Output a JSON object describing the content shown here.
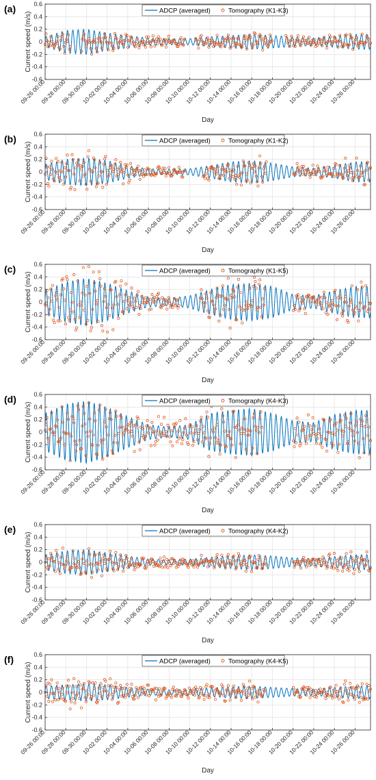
{
  "figure": {
    "panels": [
      {
        "letter": "(a)",
        "tomo_label": "Tomography (K1-K3)"
      },
      {
        "letter": "(b)",
        "tomo_label": "Tomography (K1-K2)"
      },
      {
        "letter": "(c)",
        "tomo_label": "Tomography (K1-K5)"
      },
      {
        "letter": "(d)",
        "tomo_label": "Tomography (K4-K3)"
      },
      {
        "letter": "(e)",
        "tomo_label": "Tomography (K4-K2)"
      },
      {
        "letter": "(f)",
        "tomo_label": "Tomography (K4-K5)"
      }
    ],
    "colors": {
      "adcp": "#0072BD",
      "tomography": "#D95319",
      "grid": "#dcdcdc",
      "axis": "#262626"
    }
  },
  "chart_data": [
    {
      "type": "line",
      "panel_label": "(a)",
      "xlabel": "Day",
      "ylabel": "Current speed (m/s)",
      "ylim": [
        -0.6,
        0.6
      ],
      "yticks": [
        -0.6,
        -0.4,
        -0.2,
        0,
        0.2,
        0.4,
        0.6
      ],
      "xlim": [
        "09-26 00:00",
        "10-27 12:00"
      ],
      "xticks": [
        "09-26 00:00",
        "09-28 00:00",
        "09-30 00:00",
        "10-02 00:00",
        "10-04 00:00",
        "10-06 00:00",
        "10-08 00:00",
        "10-10 00:00",
        "10-12 00:00",
        "10-14 00:00",
        "10-16 00:00",
        "10-18 00:00",
        "10-20 00:00",
        "10-22 00:00",
        "10-24 00:00",
        "10-26 00:00"
      ],
      "grid": true,
      "legend_position": "top",
      "series": [
        {
          "name": "ADCP (averaged)",
          "style": "line",
          "x": [
            "09-26",
            "09-28",
            "09-30",
            "10-02",
            "10-04",
            "10-06",
            "10-08",
            "10-10",
            "10-12",
            "10-14",
            "10-16",
            "10-18",
            "10-20",
            "10-22",
            "10-24",
            "10-26"
          ],
          "amplitude": [
            0.08,
            0.18,
            0.2,
            0.14,
            0.1,
            0.06,
            0.05,
            0.05,
            0.08,
            0.1,
            0.12,
            0.1,
            0.08,
            0.06,
            0.09,
            0.12
          ]
        },
        {
          "name": "Tomography (K1-K3)",
          "style": "markers",
          "x": [
            "09-26",
            "09-28",
            "09-30",
            "10-02",
            "10-04",
            "10-06",
            "10-08",
            "10-10",
            "10-12",
            "10-14",
            "10-16",
            "10-18",
            "10-20",
            "10-22",
            "10-24",
            "10-26"
          ],
          "amplitude": [
            0.12,
            0.1,
            0.1,
            0.09,
            0.08,
            0.07,
            0.07,
            0.06,
            0.07,
            0.08,
            0.08,
            0.07,
            0.07,
            0.06,
            0.07,
            0.08
          ],
          "gaps": [
            [
              "09-28 12:00",
              "09-29 12:00"
            ],
            [
              "10-09 12:00",
              "10-10 12:00"
            ],
            [
              "10-18 00:00",
              "10-19 06:00"
            ]
          ]
        }
      ]
    },
    {
      "type": "line",
      "panel_label": "(b)",
      "xlabel": "Day",
      "ylabel": "Current speed (m/s)",
      "ylim": [
        -0.6,
        0.6
      ],
      "yticks": [
        -0.6,
        -0.4,
        -0.2,
        0,
        0.2,
        0.4,
        0.6
      ],
      "xlim": [
        "09-26 00:00",
        "10-27 12:00"
      ],
      "xticks": [
        "09-26 00:00",
        "09-28 00:00",
        "09-30 00:00",
        "10-02 00:00",
        "10-04 00:00",
        "10-06 00:00",
        "10-08 00:00",
        "10-10 00:00",
        "10-12 00:00",
        "10-14 00:00",
        "10-16 00:00",
        "10-18 00:00",
        "10-20 00:00",
        "10-22 00:00",
        "10-24 00:00",
        "10-26 00:00"
      ],
      "grid": true,
      "legend_position": "top",
      "series": [
        {
          "name": "ADCP (averaged)",
          "style": "line",
          "x": [
            "09-26",
            "09-28",
            "09-30",
            "10-02",
            "10-04",
            "10-06",
            "10-08",
            "10-10",
            "10-12",
            "10-14",
            "10-16",
            "10-18",
            "10-20",
            "10-22",
            "10-24",
            "10-26"
          ],
          "amplitude": [
            0.12,
            0.2,
            0.22,
            0.18,
            0.1,
            0.05,
            0.04,
            0.05,
            0.1,
            0.16,
            0.18,
            0.14,
            0.08,
            0.06,
            0.1,
            0.16
          ]
        },
        {
          "name": "Tomography (K1-K2)",
          "style": "markers",
          "x": [
            "09-26",
            "09-28",
            "09-30",
            "10-02",
            "10-04",
            "10-06",
            "10-08",
            "10-10",
            "10-12",
            "10-14",
            "10-16",
            "10-18",
            "10-20",
            "10-22",
            "10-24",
            "10-26"
          ],
          "amplitude": [
            0.15,
            0.2,
            0.22,
            0.18,
            0.12,
            0.07,
            0.06,
            0.06,
            0.12,
            0.17,
            0.18,
            0.14,
            0.1,
            0.08,
            0.12,
            0.16
          ],
          "gaps": [
            [
              "10-09 12:00",
              "10-11 06:00"
            ],
            [
              "10-17 12:00",
              "10-20 00:00"
            ]
          ]
        }
      ]
    },
    {
      "type": "line",
      "panel_label": "(c)",
      "xlabel": "Day",
      "ylabel": "Current speed (m/s)",
      "ylim": [
        -0.6,
        0.6
      ],
      "yticks": [
        -0.6,
        -0.4,
        -0.2,
        0,
        0.2,
        0.4,
        0.6
      ],
      "xlim": [
        "09-26 00:00",
        "10-27 12:00"
      ],
      "xticks": [
        "09-26 00:00",
        "09-28 00:00",
        "09-30 00:00",
        "10-02 00:00",
        "10-04 00:00",
        "10-06 00:00",
        "10-08 00:00",
        "10-10 00:00",
        "10-12 00:00",
        "10-14 00:00",
        "10-16 00:00",
        "10-18 00:00",
        "10-20 00:00",
        "10-22 00:00",
        "10-24 00:00",
        "10-26 00:00"
      ],
      "grid": true,
      "legend_position": "top",
      "series": [
        {
          "name": "ADCP (averaged)",
          "style": "line",
          "x": [
            "09-26",
            "09-28",
            "09-30",
            "10-02",
            "10-04",
            "10-06",
            "10-08",
            "10-10",
            "10-12",
            "10-14",
            "10-16",
            "10-18",
            "10-20",
            "10-22",
            "10-24",
            "10-26"
          ],
          "amplitude": [
            0.18,
            0.32,
            0.38,
            0.3,
            0.18,
            0.08,
            0.06,
            0.1,
            0.2,
            0.28,
            0.3,
            0.25,
            0.12,
            0.1,
            0.18,
            0.25
          ]
        },
        {
          "name": "Tomography (K1-K5)",
          "style": "markers",
          "x": [
            "09-26",
            "09-28",
            "09-30",
            "10-02",
            "10-04",
            "10-06",
            "10-08",
            "10-10",
            "10-12",
            "10-14",
            "10-16",
            "10-18",
            "10-20",
            "10-22",
            "10-24",
            "10-26"
          ],
          "amplitude": [
            0.22,
            0.36,
            0.42,
            0.32,
            0.2,
            0.12,
            0.08,
            0.1,
            0.2,
            0.28,
            0.3,
            0.25,
            0.15,
            0.12,
            0.18,
            0.26
          ],
          "gaps": [
            [
              "10-09 00:00",
              "10-11 00:00"
            ],
            [
              "10-17 06:00",
              "10-20 00:00"
            ]
          ]
        }
      ]
    },
    {
      "type": "line",
      "panel_label": "(d)",
      "xlabel": "Day",
      "ylabel": "Current speed (m/s)",
      "ylim": [
        -0.6,
        0.6
      ],
      "yticks": [
        -0.6,
        -0.4,
        -0.2,
        0,
        0.2,
        0.4,
        0.6
      ],
      "xlim": [
        "09-26 00:00",
        "10-27 12:00"
      ],
      "xticks": [
        "09-26 00:00",
        "09-28 00:00",
        "09-30 00:00",
        "10-02 00:00",
        "10-04 00:00",
        "10-06 00:00",
        "10-08 00:00",
        "10-10 00:00",
        "10-12 00:00",
        "10-14 00:00",
        "10-16 00:00",
        "10-18 00:00",
        "10-20 00:00",
        "10-22 00:00",
        "10-24 00:00",
        "10-26 00:00"
      ],
      "grid": true,
      "legend_position": "top",
      "series": [
        {
          "name": "ADCP (averaged)",
          "style": "line",
          "x": [
            "09-26",
            "09-28",
            "09-30",
            "10-02",
            "10-04",
            "10-06",
            "10-08",
            "10-10",
            "10-12",
            "10-14",
            "10-16",
            "10-18",
            "10-20",
            "10-22",
            "10-24",
            "10-26"
          ],
          "amplitude": [
            0.3,
            0.45,
            0.5,
            0.4,
            0.25,
            0.12,
            0.08,
            0.12,
            0.3,
            0.35,
            0.38,
            0.3,
            0.18,
            0.15,
            0.28,
            0.35
          ]
        },
        {
          "name": "Tomography (K4-K3)",
          "style": "markers",
          "x": [
            "09-26",
            "09-28",
            "09-30",
            "10-02",
            "10-04",
            "10-06",
            "10-08",
            "10-10",
            "10-12",
            "10-14",
            "10-16",
            "10-18",
            "10-20",
            "10-22",
            "10-24",
            "10-26"
          ],
          "amplitude": [
            0.15,
            0.2,
            0.25,
            0.22,
            0.2,
            0.18,
            0.2,
            0.18,
            0.25,
            0.25,
            0.25,
            0.2,
            0.2,
            0.18,
            0.22,
            0.25
          ],
          "gaps": [
            [
              "10-17 00:00",
              "10-20 00:00"
            ]
          ]
        }
      ]
    },
    {
      "type": "line",
      "panel_label": "(e)",
      "xlabel": "Day",
      "ylabel": "Current speed (m/s)",
      "ylim": [
        -0.6,
        0.6
      ],
      "yticks": [
        -0.6,
        -0.4,
        -0.2,
        0,
        0.2,
        0.4,
        0.6
      ],
      "xlim": [
        "09-26 00:00",
        "10-27 12:00"
      ],
      "xticks": [
        "09-26 00:00",
        "09-28 00:00",
        "09-30 00:00",
        "10-02 00:00",
        "10-04 00:00",
        "10-06 00:00",
        "10-08 00:00",
        "10-10 00:00",
        "10-12 00:00",
        "10-14 00:00",
        "10-16 00:00",
        "10-18 00:00",
        "10-20 00:00",
        "10-22 00:00",
        "10-24 00:00",
        "10-26 00:00"
      ],
      "grid": true,
      "legend_position": "top",
      "series": [
        {
          "name": "ADCP (averaged)",
          "style": "line",
          "x": [
            "09-26",
            "09-28",
            "09-30",
            "10-02",
            "10-04",
            "10-06",
            "10-08",
            "10-10",
            "10-12",
            "10-14",
            "10-16",
            "10-18",
            "10-20",
            "10-22",
            "10-24",
            "10-26"
          ],
          "amplitude": [
            0.12,
            0.18,
            0.2,
            0.15,
            0.1,
            0.05,
            0.04,
            0.05,
            0.08,
            0.1,
            0.12,
            0.1,
            0.07,
            0.06,
            0.09,
            0.12
          ]
        },
        {
          "name": "Tomography (K4-K2)",
          "style": "markers",
          "x": [
            "09-26",
            "09-28",
            "09-30",
            "10-02",
            "10-04",
            "10-06",
            "10-08",
            "10-10",
            "10-12",
            "10-14",
            "10-16",
            "10-18",
            "10-20",
            "10-22",
            "10-24",
            "10-26"
          ],
          "amplitude": [
            0.14,
            0.16,
            0.17,
            0.14,
            0.1,
            0.08,
            0.09,
            0.07,
            0.08,
            0.09,
            0.1,
            0.08,
            0.08,
            0.07,
            0.1,
            0.12
          ],
          "gaps": [
            [
              "10-17 12:00",
              "10-20 00:00"
            ]
          ]
        }
      ]
    },
    {
      "type": "line",
      "panel_label": "(f)",
      "xlabel": "Day",
      "ylabel": "Current speed (m/s)",
      "ylim": [
        -0.6,
        0.6
      ],
      "yticks": [
        -0.6,
        -0.4,
        -0.2,
        0,
        0.2,
        0.4,
        0.6
      ],
      "xlim": [
        "09-26 00:00",
        "10-27 12:00"
      ],
      "xticks": [
        "09-26 00:00",
        "09-28 00:00",
        "09-30 00:00",
        "10-02 00:00",
        "10-04 00:00",
        "10-06 00:00",
        "10-08 00:00",
        "10-10 00:00",
        "10-12 00:00",
        "10-14 00:00",
        "10-16 00:00",
        "10-18 00:00",
        "10-20 00:00",
        "10-22 00:00",
        "10-24 00:00",
        "10-26 00:00"
      ],
      "grid": true,
      "legend_position": "top",
      "series": [
        {
          "name": "ADCP (averaged)",
          "style": "line",
          "x": [
            "09-26",
            "09-28",
            "09-30",
            "10-02",
            "10-04",
            "10-06",
            "10-08",
            "10-10",
            "10-12",
            "10-14",
            "10-16",
            "10-18",
            "10-20",
            "10-22",
            "10-24",
            "10-26"
          ],
          "amplitude": [
            0.1,
            0.12,
            0.14,
            0.12,
            0.08,
            0.05,
            0.04,
            0.05,
            0.07,
            0.09,
            0.1,
            0.08,
            0.06,
            0.05,
            0.08,
            0.1
          ]
        },
        {
          "name": "Tomography (K4-K5)",
          "style": "markers",
          "x": [
            "09-26",
            "09-28",
            "09-30",
            "10-02",
            "10-04",
            "10-06",
            "10-08",
            "10-10",
            "10-12",
            "10-14",
            "10-16",
            "10-18",
            "10-20",
            "10-22",
            "10-24",
            "10-26"
          ],
          "amplitude": [
            0.18,
            0.2,
            0.2,
            0.16,
            0.12,
            0.1,
            0.1,
            0.08,
            0.1,
            0.12,
            0.13,
            0.1,
            0.1,
            0.08,
            0.12,
            0.14
          ],
          "gaps": [
            [
              "10-17 06:00",
              "10-20 00:00"
            ]
          ]
        }
      ]
    }
  ]
}
